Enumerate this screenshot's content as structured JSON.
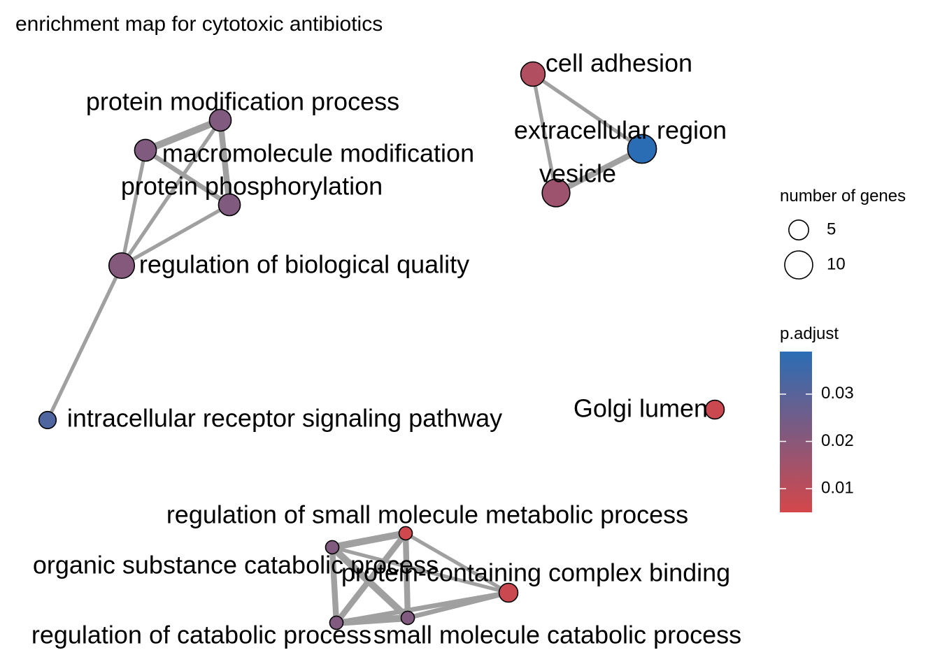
{
  "title": "enrichment map for cytotoxic antibiotics",
  "chart_data": {
    "type": "network",
    "title": "enrichment map for cytotoxic antibiotics",
    "nodes": [
      {
        "id": "pmp",
        "label": "protein modification process",
        "size": 8,
        "p_adjust": 0.022
      },
      {
        "id": "mm",
        "label": "macromolecule modification",
        "size": 8,
        "p_adjust": 0.022
      },
      {
        "id": "pp",
        "label": "protein phosphorylation",
        "size": 8,
        "p_adjust": 0.022
      },
      {
        "id": "rbq",
        "label": "regulation of biological quality",
        "size": 11,
        "p_adjust": 0.021
      },
      {
        "id": "irsp",
        "label": "intracellular receptor signaling pathway",
        "size": 5,
        "p_adjust": 0.032
      },
      {
        "id": "ca",
        "label": "cell adhesion",
        "size": 10,
        "p_adjust": 0.012
      },
      {
        "id": "er",
        "label": "extracellular region",
        "size": 14,
        "p_adjust": 0.039
      },
      {
        "id": "ves",
        "label": "vesicle",
        "size": 13,
        "p_adjust": 0.016
      },
      {
        "id": "gl",
        "label": "Golgi lumen",
        "size": 6,
        "p_adjust": 0.007
      },
      {
        "id": "rsmmp",
        "label": "regulation of small molecule metabolic process",
        "size": 3,
        "p_adjust": 0.006
      },
      {
        "id": "oscp",
        "label": "organic substance catabolic process",
        "size": 3,
        "p_adjust": 0.022
      },
      {
        "id": "pccb",
        "label": "protein-containing complex binding",
        "size": 6,
        "p_adjust": 0.007
      },
      {
        "id": "rcp",
        "label": "regulation of catabolic process",
        "size": 3,
        "p_adjust": 0.022
      },
      {
        "id": "smcp",
        "label": "small molecule catabolic process",
        "size": 3,
        "p_adjust": 0.022
      }
    ],
    "edges": [
      {
        "source": "pmp",
        "target": "mm",
        "weight": 5
      },
      {
        "source": "pmp",
        "target": "pp",
        "weight": 4
      },
      {
        "source": "pmp",
        "target": "rbq",
        "weight": 2
      },
      {
        "source": "mm",
        "target": "pp",
        "weight": 3
      },
      {
        "source": "mm",
        "target": "rbq",
        "weight": 2
      },
      {
        "source": "pp",
        "target": "rbq",
        "weight": 2
      },
      {
        "source": "rbq",
        "target": "irsp",
        "weight": 2
      },
      {
        "source": "ca",
        "target": "er",
        "weight": 2
      },
      {
        "source": "ca",
        "target": "ves",
        "weight": 2
      },
      {
        "source": "er",
        "target": "ves",
        "weight": 4
      },
      {
        "source": "oscp",
        "target": "rsmmp",
        "weight": 5
      },
      {
        "source": "oscp",
        "target": "rcp",
        "weight": 4
      },
      {
        "source": "oscp",
        "target": "smcp",
        "weight": 5
      },
      {
        "source": "oscp",
        "target": "pccb",
        "weight": 2
      },
      {
        "source": "rsmmp",
        "target": "rcp",
        "weight": 4
      },
      {
        "source": "rsmmp",
        "target": "smcp",
        "weight": 4
      },
      {
        "source": "rsmmp",
        "target": "pccb",
        "weight": 2
      },
      {
        "source": "rcp",
        "target": "smcp",
        "weight": 5
      },
      {
        "source": "rcp",
        "target": "pccb",
        "weight": 3
      },
      {
        "source": "smcp",
        "target": "pccb",
        "weight": 3
      }
    ],
    "legend": {
      "size_title": "number of genes",
      "size_breaks": [
        5,
        10
      ],
      "size_labels": [
        "5",
        "10"
      ],
      "color_title": "p.adjust",
      "color_breaks": [
        0.01,
        0.02,
        0.03
      ],
      "color_labels": [
        "0.01",
        "0.02",
        "0.03"
      ],
      "color_range": [
        0.005,
        0.039
      ],
      "color_low": "#D4474A",
      "color_high": "#2B6DB5",
      "placement": "right"
    },
    "edge_color": "#A0A0A0",
    "grid": false
  }
}
